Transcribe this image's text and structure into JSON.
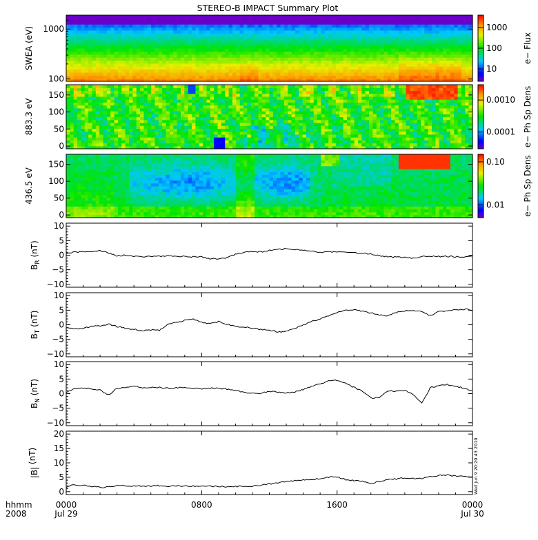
{
  "chart_data": {
    "title": "STEREO-B IMPACT Summary Plot",
    "x_axis": {
      "row1_label": "hhmm",
      "row2_label": "2008",
      "ticks": [
        {
          "hours": 0,
          "label": "0000",
          "date": "Jul 29"
        },
        {
          "hours": 8,
          "label": "0800",
          "date": ""
        },
        {
          "hours": 16,
          "label": "1600",
          "date": ""
        },
        {
          "hours": 24,
          "label": "0000",
          "date": "Jul 30"
        }
      ],
      "range_hours": [
        0,
        24
      ]
    },
    "stamp": "Wed Jun  9 20:20:43 2010",
    "spectrograms": [
      {
        "type": "heatmap",
        "ylabel": "SWEA (eV)",
        "ylog": true,
        "yrange": [
          90,
          1900
        ],
        "yticks": [
          {
            "v": 100,
            "label": "100"
          },
          {
            "v": 1000,
            "label": "1000"
          }
        ],
        "colorbar_label": "e− Flux",
        "colorbar_log": true,
        "colorbar_range": [
          2.5,
          4000
        ],
        "colorbar_ticks": [
          {
            "v": 10,
            "label": "10"
          },
          {
            "v": 100,
            "label": "100"
          },
          {
            "v": 1000,
            "label": "1000"
          }
        ]
      },
      {
        "type": "heatmap",
        "ylabel": "883.3 eV",
        "ylog": false,
        "yrange": [
          -8,
          180
        ],
        "yticks": [
          {
            "v": 0,
            "label": "0"
          },
          {
            "v": 50,
            "label": "50"
          },
          {
            "v": 100,
            "label": "100"
          },
          {
            "v": 150,
            "label": "150"
          }
        ],
        "colorbar_label": "e− Ph Sp Dens",
        "colorbar_log": true,
        "colorbar_range": [
          3e-05,
          0.003
        ],
        "colorbar_ticks": [
          {
            "v": 0.0001,
            "label": "0.0001"
          },
          {
            "v": 0.001,
            "label": "0.0010"
          }
        ]
      },
      {
        "type": "heatmap",
        "ylabel": "436.5 eV",
        "ylog": false,
        "yrange": [
          -8,
          180
        ],
        "yticks": [
          {
            "v": 0,
            "label": "0"
          },
          {
            "v": 50,
            "label": "50"
          },
          {
            "v": 100,
            "label": "100"
          },
          {
            "v": 150,
            "label": "150"
          }
        ],
        "colorbar_label": "e− Ph Sp Dens",
        "colorbar_log": true,
        "colorbar_range": [
          0.005,
          0.15
        ],
        "colorbar_ticks": [
          {
            "v": 0.01,
            "label": "0.01"
          },
          {
            "v": 0.1,
            "label": "0.10"
          }
        ]
      }
    ],
    "line_panels": [
      {
        "type": "line",
        "ylabel_main": "B",
        "ylabel_sub": "R",
        "ylabel_tail": " (nT)",
        "yrange": [
          -11,
          11
        ],
        "yticks": [
          {
            "v": -10,
            "label": "−10"
          },
          {
            "v": -5,
            "label": "−5"
          },
          {
            "v": 0,
            "label": "0"
          },
          {
            "v": 5,
            "label": "5"
          },
          {
            "v": 10,
            "label": "10"
          }
        ],
        "x": [
          0,
          0.5,
          1,
          1.5,
          2,
          2.5,
          3,
          3.5,
          4,
          4.5,
          5,
          5.5,
          6,
          6.5,
          7,
          7.5,
          8,
          8.5,
          9,
          9.5,
          10,
          10.5,
          11,
          11.5,
          12,
          12.5,
          13,
          13.5,
          14,
          14.5,
          15,
          15.5,
          16,
          16.5,
          17,
          17.5,
          18,
          18.5,
          19,
          19.5,
          20,
          20.5,
          21,
          21.5,
          22,
          22.5,
          23,
          23.5,
          24
        ],
        "values": [
          0.5,
          1.0,
          1.2,
          1.3,
          1.5,
          0.8,
          -0.2,
          0.0,
          -0.4,
          -0.6,
          -0.3,
          -0.4,
          -0.2,
          -0.5,
          -0.3,
          -0.6,
          -0.5,
          -1.2,
          -1.4,
          -0.8,
          0.3,
          1.0,
          1.3,
          1.1,
          1.6,
          2.0,
          2.2,
          2.0,
          1.7,
          1.3,
          1.0,
          1.1,
          1.2,
          1.0,
          0.8,
          0.6,
          0.4,
          -0.1,
          -0.6,
          -0.7,
          -0.8,
          -1.0,
          -0.5,
          -0.3,
          -0.4,
          -0.4,
          -0.5,
          -0.6,
          -0.5
        ]
      },
      {
        "type": "line",
        "ylabel_main": "B",
        "ylabel_sub": "T",
        "ylabel_tail": " (nT)",
        "yrange": [
          -11,
          11
        ],
        "yticks": [
          {
            "v": -10,
            "label": "−10"
          },
          {
            "v": -5,
            "label": "−5"
          },
          {
            "v": 0,
            "label": "0"
          },
          {
            "v": 5,
            "label": "5"
          },
          {
            "v": 10,
            "label": "10"
          }
        ],
        "x": [
          0,
          0.5,
          1,
          1.5,
          2,
          2.5,
          3,
          3.5,
          4,
          4.5,
          5,
          5.5,
          6,
          6.5,
          7,
          7.5,
          8,
          8.5,
          9,
          9.5,
          10,
          10.5,
          11,
          11.5,
          12,
          12.5,
          13,
          13.5,
          14,
          14.5,
          15,
          15.5,
          16,
          16.5,
          17,
          17.5,
          18,
          18.5,
          19,
          19.5,
          20,
          20.5,
          21,
          21.5,
          22,
          22.5,
          23,
          23.5,
          24
        ],
        "values": [
          -1.0,
          -1.5,
          -1.2,
          -0.5,
          -0.3,
          0.2,
          -0.6,
          -1.2,
          -1.6,
          -2.0,
          -1.8,
          -1.9,
          0.3,
          0.8,
          1.5,
          1.9,
          1.0,
          0.3,
          1.1,
          0.2,
          -0.5,
          -0.8,
          -1.2,
          -1.6,
          -1.8,
          -2.5,
          -2.2,
          -1.2,
          -0.1,
          1.2,
          2.0,
          3.2,
          4.2,
          5.0,
          5.1,
          4.7,
          4.0,
          3.5,
          3.0,
          4.3,
          4.8,
          5.0,
          4.6,
          3.2,
          4.5,
          4.8,
          5.2,
          5.3,
          5.1
        ]
      },
      {
        "type": "line",
        "ylabel_main": "B",
        "ylabel_sub": "N",
        "ylabel_tail": " (nT)",
        "yrange": [
          -11,
          11
        ],
        "yticks": [
          {
            "v": -10,
            "label": "−10"
          },
          {
            "v": -5,
            "label": "−5"
          },
          {
            "v": 0,
            "label": "0"
          },
          {
            "v": 5,
            "label": "5"
          },
          {
            "v": 10,
            "label": "10"
          }
        ],
        "x": [
          0,
          0.5,
          1,
          1.5,
          2,
          2.5,
          3,
          3.5,
          4,
          4.5,
          5,
          5.5,
          6,
          6.5,
          7,
          7.5,
          8,
          8.5,
          9,
          9.5,
          10,
          10.5,
          11,
          11.5,
          12,
          12.5,
          13,
          13.5,
          14,
          14.5,
          15,
          15.5,
          16,
          16.5,
          17,
          17.5,
          18,
          18.5,
          19,
          19.5,
          20,
          20.5,
          21,
          21.5,
          22,
          22.5,
          23,
          23.5,
          24
        ],
        "values": [
          0.5,
          1.8,
          2.0,
          1.6,
          1.2,
          -0.4,
          1.8,
          2.2,
          2.4,
          2.1,
          2.0,
          2.1,
          1.8,
          2.0,
          2.0,
          1.8,
          1.7,
          1.9,
          1.8,
          1.5,
          1.2,
          0.5,
          0.0,
          0.2,
          0.8,
          0.6,
          0.2,
          0.6,
          1.5,
          2.6,
          3.4,
          4.3,
          4.6,
          3.5,
          2.2,
          0.8,
          -1.5,
          -1.3,
          1.0,
          0.8,
          1.2,
          -0.5,
          -3.3,
          2.0,
          2.8,
          3.1,
          2.6,
          1.8,
          1.0
        ]
      },
      {
        "type": "line",
        "ylabel_main": "|B|",
        "ylabel_sub": "",
        "ylabel_tail": " (nT)",
        "yrange": [
          -1,
          21
        ],
        "yticks": [
          {
            "v": 0,
            "label": "0"
          },
          {
            "v": 5,
            "label": "5"
          },
          {
            "v": 10,
            "label": "10"
          },
          {
            "v": 15,
            "label": "15"
          },
          {
            "v": 20,
            "label": "20"
          }
        ],
        "x": [
          0,
          0.5,
          1,
          1.5,
          2,
          2.5,
          3,
          3.5,
          4,
          4.5,
          5,
          5.5,
          6,
          6.5,
          7,
          7.5,
          8,
          8.5,
          9,
          9.5,
          10,
          10.5,
          11,
          11.5,
          12,
          12.5,
          13,
          13.5,
          14,
          14.5,
          15,
          15.5,
          16,
          16.5,
          17,
          17.5,
          18,
          18.5,
          19,
          19.5,
          20,
          20.5,
          21,
          21.5,
          22,
          22.5,
          23,
          23.5,
          24
        ],
        "values": [
          1.6,
          2.4,
          2.2,
          1.8,
          1.5,
          1.6,
          2.0,
          2.1,
          2.0,
          1.9,
          2.0,
          2.1,
          1.9,
          2.0,
          2.0,
          1.9,
          1.8,
          1.9,
          1.8,
          1.7,
          1.8,
          1.8,
          1.9,
          2.2,
          2.7,
          3.0,
          3.5,
          3.8,
          4.0,
          4.2,
          4.6,
          5.0,
          5.1,
          4.2,
          3.8,
          3.6,
          2.8,
          3.5,
          4.2,
          4.4,
          4.8,
          4.5,
          4.6,
          5.2,
          5.6,
          5.8,
          5.4,
          5.3,
          5.0
        ]
      }
    ]
  }
}
